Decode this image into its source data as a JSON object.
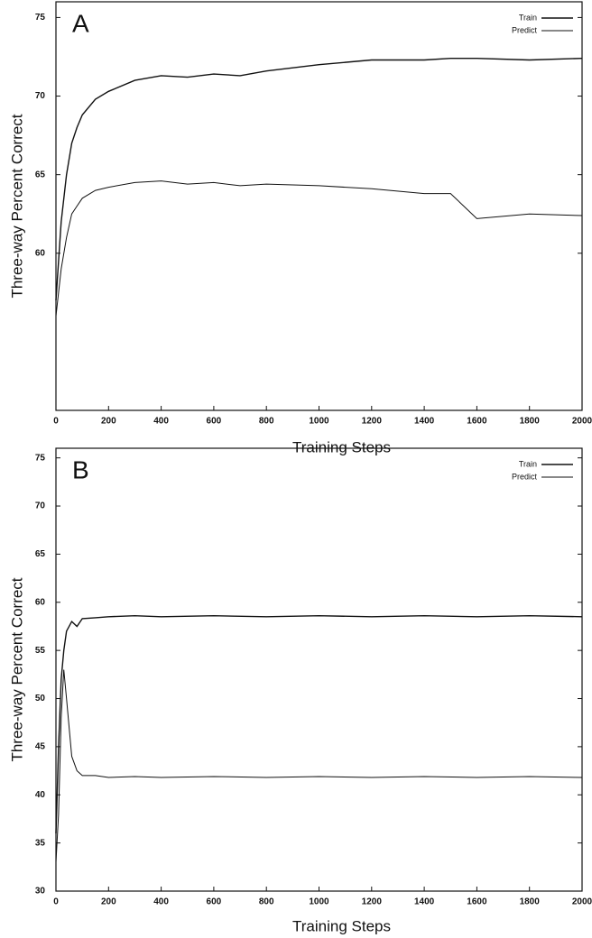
{
  "chart_data": [
    {
      "type": "line",
      "label": "A",
      "xlabel": "Training Steps",
      "ylabel": "Three-way Percent Correct",
      "x": [
        0,
        20,
        40,
        60,
        80,
        100,
        150,
        200,
        300,
        400,
        500,
        600,
        700,
        800,
        1000,
        1200,
        1400,
        1500,
        1600,
        1800,
        2000
      ],
      "series": [
        {
          "name": "Train",
          "color": "#111111",
          "values": [
            57,
            62,
            65,
            67,
            68,
            68.8,
            69.8,
            70.3,
            71,
            71.3,
            71.2,
            71.4,
            71.3,
            71.6,
            72,
            72.3,
            72.3,
            72.4,
            72.4,
            72.3,
            72.4
          ]
        },
        {
          "name": "Predict",
          "color": "#111111",
          "values": [
            56,
            59,
            61,
            62.5,
            63,
            63.5,
            64,
            64.2,
            64.5,
            64.6,
            64.4,
            64.5,
            64.3,
            64.4,
            64.3,
            64.1,
            63.8,
            63.8,
            62.2,
            62.5,
            62.4
          ]
        }
      ],
      "xlim": [
        0,
        2000
      ],
      "xticks": [
        0,
        200,
        400,
        600,
        800,
        1000,
        1200,
        1400,
        1600,
        1800,
        2000
      ],
      "ylim": [
        50,
        76
      ],
      "yticks": [
        60,
        65,
        70,
        75
      ],
      "legend": "upper right"
    },
    {
      "type": "line",
      "label": "B",
      "xlabel": "Training Steps",
      "ylabel": "Three-way Percent Correct",
      "x": [
        0,
        10,
        20,
        30,
        40,
        60,
        80,
        100,
        150,
        200,
        300,
        400,
        600,
        800,
        1000,
        1200,
        1400,
        1600,
        1800,
        2000
      ],
      "series": [
        {
          "name": "Train",
          "color": "#111111",
          "values": [
            36,
            45,
            52,
            55,
            57,
            58,
            57.5,
            58.3,
            58.4,
            58.5,
            58.6,
            58.5,
            58.6,
            58.5,
            58.6,
            58.5,
            58.6,
            58.5,
            58.6,
            58.5
          ]
        },
        {
          "name": "Predict",
          "color": "#111111",
          "values": [
            33,
            38,
            48,
            53,
            50,
            44,
            42.5,
            42,
            42,
            41.8,
            41.9,
            41.8,
            41.9,
            41.8,
            41.9,
            41.8,
            41.9,
            41.8,
            41.9,
            41.8
          ]
        }
      ],
      "xlim": [
        0,
        2000
      ],
      "xticks": [
        0,
        200,
        400,
        600,
        800,
        1000,
        1200,
        1400,
        1600,
        1800,
        2000
      ],
      "ylim": [
        30,
        76
      ],
      "yticks": [
        30,
        35,
        40,
        45,
        50,
        55,
        60,
        65,
        70,
        75
      ],
      "legend": "upper right"
    }
  ]
}
